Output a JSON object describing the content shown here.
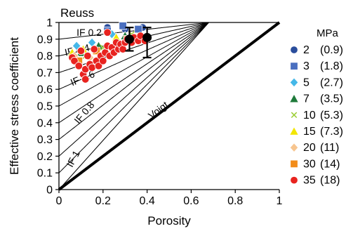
{
  "chart_data": {
    "type": "scatter",
    "title": "",
    "corner_label": "Reuss",
    "xlabel": "Porosity",
    "ylabel": "Effective stress coefficient",
    "xlim": [
      0,
      1
    ],
    "ylim": [
      0,
      1
    ],
    "x_ticks": [
      "0",
      "0.2",
      "0.4",
      "0.6",
      "0.8",
      "1"
    ],
    "y_ticks": [
      "0",
      "0.1",
      "0.2",
      "0.3",
      "0.4",
      "0.5",
      "0.6",
      "0.7",
      "0.8",
      "0.9",
      "1"
    ],
    "grid": false,
    "legend_title": "MPa",
    "legend_position": "right",
    "legend": [
      {
        "pressure": "2",
        "value": "(0.9)",
        "marker": "circle",
        "color": "#2a4d9c"
      },
      {
        "pressure": "3",
        "value": "(1.8)",
        "marker": "square",
        "color": "#4a6fc0"
      },
      {
        "pressure": "5",
        "value": "(2.7)",
        "marker": "diamond",
        "color": "#45b8e8"
      },
      {
        "pressure": "7",
        "value": "(3.5)",
        "marker": "triangle",
        "color": "#1e7a3a"
      },
      {
        "pressure": "10",
        "value": "(5.3)",
        "marker": "x-mark",
        "color": "#9acd32"
      },
      {
        "pressure": "15",
        "value": "(7.3)",
        "marker": "triangle",
        "color": "#f2e600"
      },
      {
        "pressure": "20",
        "value": "(11)",
        "marker": "diamond",
        "color": "#f7c58f"
      },
      {
        "pressure": "30",
        "value": "(14)",
        "marker": "square",
        "color": "#f28c1a"
      },
      {
        "pressure": "35",
        "value": "(18)",
        "marker": "circle",
        "color": "#e8231f"
      }
    ],
    "reference_lines": [
      {
        "label": "Voigt",
        "description": "y = x",
        "color": "#000000"
      },
      {
        "label": "Reuss",
        "description": "y = 1",
        "color": "#000000"
      }
    ],
    "isoframe_curves": {
      "labels": [
        "IF 0.2",
        "IF 0.4",
        "IF 0.6",
        "IF 0.8",
        "IF 1"
      ],
      "values": [
        0.1,
        0.2,
        0.3,
        0.4,
        0.5,
        0.6,
        0.7,
        0.8,
        0.9,
        1.0
      ]
    },
    "mean_points": [
      {
        "x": 0.32,
        "y": 0.9,
        "y_err_low": 0.83,
        "y_err_high": 0.97
      },
      {
        "x": 0.4,
        "y": 0.91,
        "y_err_low": 0.79,
        "y_err_high": 0.97
      }
    ],
    "series": [
      {
        "name": "2",
        "points": [
          [
            0.22,
            0.97
          ],
          [
            0.3,
            0.96
          ],
          [
            0.38,
            0.97
          ]
        ]
      },
      {
        "name": "3",
        "points": [
          [
            0.29,
            0.98
          ],
          [
            0.36,
            0.96
          ],
          [
            0.22,
            0.95
          ]
        ]
      },
      {
        "name": "5",
        "points": [
          [
            0.08,
            0.86
          ],
          [
            0.15,
            0.88
          ],
          [
            0.24,
            0.93
          ]
        ]
      },
      {
        "name": "7",
        "points": [
          [
            0.1,
            0.82
          ],
          [
            0.18,
            0.86
          ],
          [
            0.3,
            0.92
          ]
        ]
      },
      {
        "name": "10",
        "points": [
          [
            0.12,
            0.8
          ],
          [
            0.2,
            0.85
          ],
          [
            0.33,
            0.93
          ]
        ]
      },
      {
        "name": "15",
        "points": [
          [
            0.06,
            0.82
          ],
          [
            0.11,
            0.84
          ],
          [
            0.26,
            0.91
          ]
        ]
      },
      {
        "name": "20",
        "points": [
          [
            0.07,
            0.8
          ],
          [
            0.14,
            0.79
          ],
          [
            0.35,
            0.91
          ]
        ]
      },
      {
        "name": "30",
        "points": [
          [
            0.09,
            0.77
          ],
          [
            0.17,
            0.83
          ],
          [
            0.31,
            0.9
          ]
        ]
      },
      {
        "name": "35",
        "points": [
          [
            0.06,
            0.79
          ],
          [
            0.07,
            0.77
          ],
          [
            0.09,
            0.74
          ],
          [
            0.1,
            0.83
          ],
          [
            0.11,
            0.69
          ],
          [
            0.12,
            0.72
          ],
          [
            0.12,
            0.66
          ],
          [
            0.13,
            0.8
          ],
          [
            0.14,
            0.75
          ],
          [
            0.15,
            0.73
          ],
          [
            0.16,
            0.84
          ],
          [
            0.17,
            0.77
          ],
          [
            0.18,
            0.74
          ],
          [
            0.19,
            0.8
          ],
          [
            0.2,
            0.77
          ],
          [
            0.21,
            0.82
          ],
          [
            0.22,
            0.86
          ],
          [
            0.22,
            0.94
          ],
          [
            0.23,
            0.8
          ],
          [
            0.24,
            0.85
          ],
          [
            0.25,
            0.82
          ],
          [
            0.26,
            0.88
          ],
          [
            0.27,
            0.84
          ],
          [
            0.28,
            0.87
          ],
          [
            0.29,
            0.84
          ],
          [
            0.3,
            0.88
          ],
          [
            0.31,
            0.9
          ],
          [
            0.33,
            0.88
          ],
          [
            0.34,
            0.91
          ],
          [
            0.36,
            0.89
          ],
          [
            0.37,
            0.92
          ],
          [
            0.39,
            0.89
          ]
        ]
      }
    ]
  }
}
